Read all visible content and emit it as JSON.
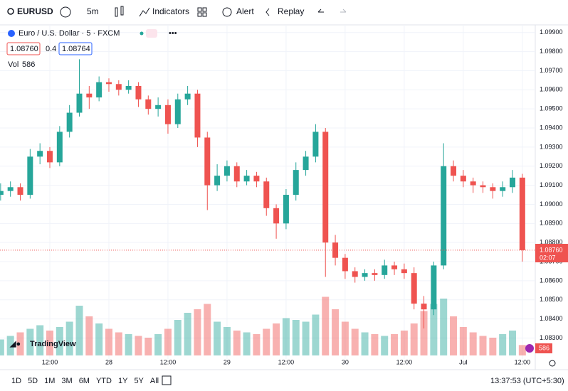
{
  "toolbar": {
    "symbol": "EURUSD",
    "interval": "5m",
    "indicators": "Indicators",
    "alert": "Alert",
    "replay": "Replay"
  },
  "legend": {
    "title": "Euro / U.S. Dollar · 5 · FXCM",
    "bid": "1.08760",
    "spread": "0.4",
    "ask": "1.08764",
    "vol_label": "Vol",
    "vol_value": "586"
  },
  "price_badge": {
    "price": "1.08760",
    "countdown": "02:07"
  },
  "volume_badge": "586",
  "logo": "TradingView",
  "ranges": [
    "1D",
    "5D",
    "1M",
    "3M",
    "6M",
    "YTD",
    "1Y",
    "5Y",
    "All"
  ],
  "clock": "13:37:53 (UTC+5:30)",
  "chart_data": {
    "type": "candlestick",
    "categories": [
      null,
      null,
      null,
      null,
      null,
      "12:00",
      null,
      null,
      null,
      null,
      null,
      "28",
      null,
      null,
      null,
      null,
      null,
      "12:00",
      null,
      null,
      null,
      null,
      null,
      "29",
      null,
      null,
      null,
      null,
      null,
      "12:00",
      null,
      null,
      null,
      null,
      null,
      "30",
      null,
      null,
      null,
      null,
      null,
      "12:00",
      null,
      null,
      null,
      null,
      null,
      "Jul",
      null,
      null,
      null,
      null,
      null,
      "12:00"
    ],
    "open": [
      1.0905,
      1.0907,
      1.0909,
      1.0905,
      1.0925,
      1.0928,
      1.0922,
      1.0938,
      1.0948,
      1.0958,
      1.0956,
      1.0964,
      1.0963,
      1.096,
      1.0962,
      1.0955,
      1.095,
      1.0952,
      1.0942,
      1.0955,
      1.0958,
      1.0935,
      1.091,
      1.0915,
      1.092,
      1.0912,
      1.0915,
      1.0912,
      1.0898,
      1.089,
      1.0905,
      1.0918,
      1.0925,
      1.0938,
      1.088,
      1.0872,
      1.0865,
      1.0862,
      1.0864,
      1.0863,
      1.0868,
      1.0866,
      1.0864,
      1.0848,
      1.0845,
      1.0868,
      1.092,
      1.0915,
      1.0912,
      1.091,
      1.0909,
      1.0907,
      1.0909,
      1.0914
    ],
    "high": [
      1.0911,
      1.0912,
      1.0911,
      1.0929,
      1.0932,
      1.093,
      1.0941,
      1.0952,
      1.0976,
      1.0962,
      1.0967,
      1.0966,
      1.0965,
      1.0965,
      1.0964,
      1.0957,
      1.0956,
      1.0955,
      1.0958,
      1.0962,
      1.096,
      1.0938,
      1.0921,
      1.0923,
      1.0922,
      1.0918,
      1.0917,
      1.0914,
      1.09,
      1.0908,
      1.0922,
      1.0928,
      1.0942,
      1.094,
      1.0884,
      1.0874,
      1.0867,
      1.0866,
      1.0866,
      1.0871,
      1.087,
      1.0869,
      1.0867,
      1.0852,
      1.087,
      1.0932,
      1.0923,
      1.0918,
      1.0914,
      1.0912,
      1.0911,
      1.0912,
      1.0918,
      1.0916
    ],
    "low": [
      1.0902,
      1.0904,
      1.0902,
      1.0903,
      1.0921,
      1.0919,
      1.092,
      1.0935,
      1.0946,
      1.095,
      1.0954,
      1.0959,
      1.0957,
      1.0958,
      1.0951,
      1.0947,
      1.0946,
      1.0937,
      1.094,
      1.0952,
      1.093,
      1.0897,
      1.0907,
      1.0912,
      1.0909,
      1.091,
      1.0909,
      1.0894,
      1.0882,
      1.0887,
      1.0902,
      1.0915,
      1.0922,
      1.0862,
      1.0868,
      1.0861,
      1.0859,
      1.086,
      1.086,
      1.0861,
      1.0863,
      1.0861,
      1.0845,
      1.0835,
      1.0842,
      1.0866,
      1.0912,
      1.0909,
      1.0906,
      1.0906,
      1.0903,
      1.0904,
      1.0906,
      1.087
    ],
    "close": [
      1.0907,
      1.0909,
      1.0905,
      1.0925,
      1.0928,
      1.0922,
      1.0938,
      1.0948,
      1.0958,
      1.0956,
      1.0964,
      1.0963,
      1.096,
      1.0962,
      1.0955,
      1.095,
      1.0952,
      1.0942,
      1.0955,
      1.0958,
      1.0935,
      1.091,
      1.0915,
      1.092,
      1.0912,
      1.0915,
      1.0912,
      1.0898,
      1.089,
      1.0905,
      1.0918,
      1.0925,
      1.0938,
      1.088,
      1.0872,
      1.0865,
      1.0862,
      1.0864,
      1.0863,
      1.0868,
      1.0866,
      1.0864,
      1.0848,
      1.0845,
      1.0868,
      1.092,
      1.0915,
      1.0912,
      1.091,
      1.0909,
      1.0907,
      1.0909,
      1.0914,
      1.0876
    ],
    "volume": [
      900,
      1100,
      1300,
      1500,
      1700,
      1400,
      1600,
      1900,
      2800,
      2200,
      1800,
      1500,
      1300,
      1200,
      1100,
      1000,
      1200,
      1500,
      2000,
      2400,
      2600,
      2900,
      1900,
      1600,
      1400,
      1300,
      1200,
      1500,
      1800,
      2100,
      2000,
      1900,
      2300,
      3300,
      2600,
      1900,
      1500,
      1300,
      1200,
      1100,
      1200,
      1400,
      1800,
      2500,
      2900,
      3200,
      2200,
      1600,
      1300,
      1100,
      1000,
      1200,
      1400,
      586
    ],
    "volume_ylim": [
      0,
      4000
    ],
    "up_color": "#26a69a",
    "down_color": "#ef5350",
    "last_price": 1.0876,
    "ylim": [
      1.0819,
      1.0994
    ],
    "yticks": [
      {
        "value": 1.099,
        "label": "1.09900"
      },
      {
        "value": 1.098,
        "label": "1.09800"
      },
      {
        "value": 1.097,
        "label": "1.09700"
      },
      {
        "value": 1.096,
        "label": "1.09600"
      },
      {
        "value": 1.095,
        "label": "1.09500"
      },
      {
        "value": 1.094,
        "label": "1.09400"
      },
      {
        "value": 1.093,
        "label": "1.09300"
      },
      {
        "value": 1.092,
        "label": "1.09200"
      },
      {
        "value": 1.091,
        "label": "1.09100"
      },
      {
        "value": 1.09,
        "label": "1.09000"
      },
      {
        "value": 1.089,
        "label": "1.08900"
      },
      {
        "value": 1.088,
        "label": "1.08800"
      },
      {
        "value": 1.087,
        "label": "1.08700"
      },
      {
        "value": 1.086,
        "label": "1.08600"
      },
      {
        "value": 1.085,
        "label": "1.08500"
      },
      {
        "value": 1.084,
        "label": "1.08400"
      },
      {
        "value": 1.083,
        "label": "1.08300"
      }
    ],
    "grid": true
  }
}
